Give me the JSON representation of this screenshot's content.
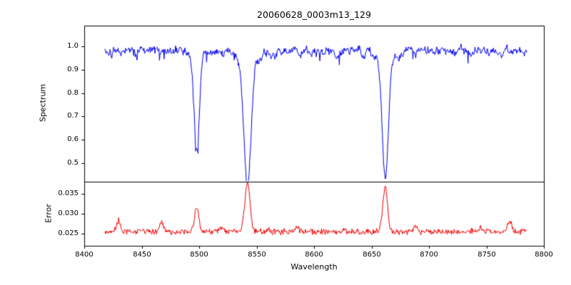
{
  "chart_data": {
    "type": "line",
    "title": "20060628_0003m13_129",
    "xlabel": "Wavelength",
    "xlim": [
      8400,
      8800
    ],
    "x_ticks": [
      8400,
      8450,
      8500,
      8550,
      8600,
      8650,
      8700,
      8750,
      8800
    ],
    "x_range": [
      8418,
      8785
    ],
    "step": 0.5,
    "seed": 42,
    "grid": false,
    "legend": "none",
    "panels": [
      {
        "name": "spectrum",
        "ylabel": "Spectrum",
        "ylim": [
          0.42,
          1.09
        ],
        "y_ticks": [
          1.0,
          0.9,
          0.8,
          0.7,
          0.6,
          0.5
        ],
        "tick_decimals": 1,
        "color": "#0000ee",
        "continuum": 0.99,
        "noise_amplitude": 0.022,
        "absorption_lines": [
          {
            "center": 8498,
            "depth": 0.4,
            "width": 2.2,
            "wing": 0.02
          },
          {
            "center": 8542,
            "depth": 0.52,
            "width": 3.0,
            "wing": 0.05
          },
          {
            "center": 8662,
            "depth": 0.51,
            "width": 2.6,
            "wing": 0.04
          }
        ]
      },
      {
        "name": "error",
        "ylabel": "Error",
        "ylim": [
          0.022,
          0.038
        ],
        "y_ticks": [
          0.035,
          0.03,
          0.025
        ],
        "tick_decimals": 3,
        "color": "#ee0000",
        "baseline": 0.0247,
        "noise_amplitude": 0.0009,
        "peaks": [
          {
            "center": 8430,
            "height": 0.0028,
            "width": 1.5
          },
          {
            "center": 8467,
            "height": 0.0024,
            "width": 1.5
          },
          {
            "center": 8498,
            "height": 0.0062,
            "width": 1.8
          },
          {
            "center": 8519,
            "height": 0.001,
            "width": 1.5
          },
          {
            "center": 8542,
            "height": 0.0125,
            "width": 2.2
          },
          {
            "center": 8585,
            "height": 0.0012,
            "width": 1.5
          },
          {
            "center": 8662,
            "height": 0.0115,
            "width": 2.0
          },
          {
            "center": 8688,
            "height": 0.0013,
            "width": 1.5
          },
          {
            "center": 8745,
            "height": 0.001,
            "width": 1.5
          },
          {
            "center": 8770,
            "height": 0.0028,
            "width": 1.5
          }
        ]
      }
    ]
  }
}
